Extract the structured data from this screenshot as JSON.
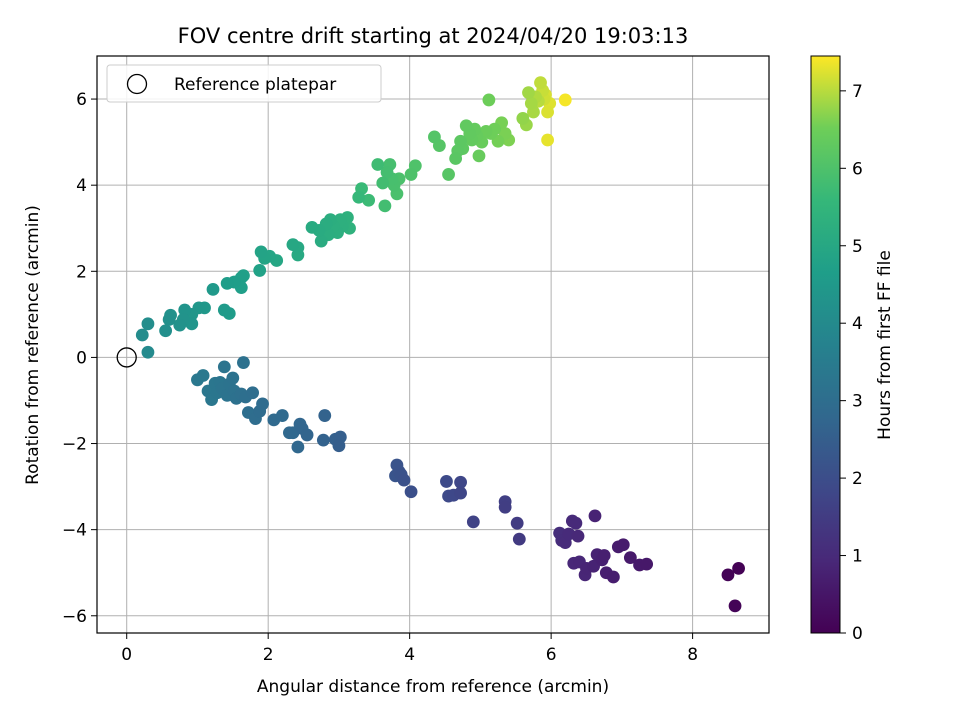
{
  "chart_data": {
    "type": "scatter",
    "title": "FOV centre drift starting at 2024/04/20 19:03:13",
    "xlabel": "Angular distance from reference (arcmin)",
    "ylabel": "Rotation from reference (arcmin)",
    "colorbar_label": "Hours from first FF file",
    "xlim": [
      -0.42,
      9.08
    ],
    "ylim": [
      -6.4,
      7.0
    ],
    "clim": [
      0,
      7.45
    ],
    "xticks": [
      0,
      2,
      4,
      6,
      8
    ],
    "yticks": [
      -6,
      -4,
      -2,
      0,
      2,
      4,
      6
    ],
    "cticks": [
      0,
      1,
      2,
      3,
      4,
      5,
      6,
      7
    ],
    "grid": true,
    "colormap": "viridis",
    "legend": {
      "placement": "top-left",
      "entries": [
        "Reference platepar"
      ]
    },
    "reference_point": {
      "x": 0,
      "y": 0
    },
    "points": [
      {
        "x": 8.65,
        "y": -4.9,
        "t": 0.02
      },
      {
        "x": 8.5,
        "y": -5.05,
        "t": 0.05
      },
      {
        "x": 8.6,
        "y": -5.77,
        "t": 0.08
      },
      {
        "x": 7.35,
        "y": -4.8,
        "t": 0.55
      },
      {
        "x": 7.25,
        "y": -4.82,
        "t": 0.58
      },
      {
        "x": 7.12,
        "y": -4.65,
        "t": 0.6
      },
      {
        "x": 7.02,
        "y": -4.35,
        "t": 0.62
      },
      {
        "x": 6.95,
        "y": -4.4,
        "t": 0.65
      },
      {
        "x": 6.88,
        "y": -5.1,
        "t": 0.68
      },
      {
        "x": 6.78,
        "y": -5.0,
        "t": 0.7
      },
      {
        "x": 6.75,
        "y": -4.6,
        "t": 0.72
      },
      {
        "x": 6.72,
        "y": -4.7,
        "t": 0.75
      },
      {
        "x": 6.65,
        "y": -4.58,
        "t": 0.78
      },
      {
        "x": 6.6,
        "y": -4.85,
        "t": 0.8
      },
      {
        "x": 6.62,
        "y": -3.68,
        "t": 0.82
      },
      {
        "x": 6.5,
        "y": -4.9,
        "t": 0.85
      },
      {
        "x": 6.48,
        "y": -5.05,
        "t": 0.88
      },
      {
        "x": 6.4,
        "y": -4.75,
        "t": 0.9
      },
      {
        "x": 6.32,
        "y": -4.78,
        "t": 0.93
      },
      {
        "x": 6.38,
        "y": -4.15,
        "t": 0.95
      },
      {
        "x": 6.35,
        "y": -3.85,
        "t": 0.98
      },
      {
        "x": 6.3,
        "y": -3.8,
        "t": 1.0
      },
      {
        "x": 6.25,
        "y": -4.1,
        "t": 1.02
      },
      {
        "x": 6.2,
        "y": -4.3,
        "t": 1.05
      },
      {
        "x": 6.15,
        "y": -4.25,
        "t": 1.08
      },
      {
        "x": 6.12,
        "y": -4.08,
        "t": 1.1
      },
      {
        "x": 5.55,
        "y": -4.22,
        "t": 1.45
      },
      {
        "x": 5.52,
        "y": -3.85,
        "t": 1.5
      },
      {
        "x": 5.35,
        "y": -3.48,
        "t": 1.55
      },
      {
        "x": 5.35,
        "y": -3.35,
        "t": 1.58
      },
      {
        "x": 4.9,
        "y": -3.82,
        "t": 1.7
      },
      {
        "x": 4.72,
        "y": -3.15,
        "t": 1.78
      },
      {
        "x": 4.72,
        "y": -2.9,
        "t": 1.8
      },
      {
        "x": 4.62,
        "y": -3.2,
        "t": 1.84
      },
      {
        "x": 4.55,
        "y": -3.22,
        "t": 1.88
      },
      {
        "x": 4.52,
        "y": -2.88,
        "t": 1.9
      },
      {
        "x": 4.02,
        "y": -3.12,
        "t": 2.05
      },
      {
        "x": 3.92,
        "y": -2.85,
        "t": 2.1
      },
      {
        "x": 3.88,
        "y": -2.72,
        "t": 2.12
      },
      {
        "x": 3.85,
        "y": -2.65,
        "t": 2.15
      },
      {
        "x": 3.82,
        "y": -2.5,
        "t": 2.18
      },
      {
        "x": 3.8,
        "y": -2.75,
        "t": 2.2
      },
      {
        "x": 3.0,
        "y": -2.05,
        "t": 2.5
      },
      {
        "x": 3.02,
        "y": -1.85,
        "t": 2.53
      },
      {
        "x": 2.95,
        "y": -1.9,
        "t": 2.55
      },
      {
        "x": 2.78,
        "y": -1.92,
        "t": 2.62
      },
      {
        "x": 2.8,
        "y": -1.35,
        "t": 2.65
      },
      {
        "x": 2.55,
        "y": -1.8,
        "t": 2.7
      },
      {
        "x": 2.48,
        "y": -1.65,
        "t": 2.73
      },
      {
        "x": 2.45,
        "y": -1.55,
        "t": 2.75
      },
      {
        "x": 2.42,
        "y": -2.08,
        "t": 2.78
      },
      {
        "x": 2.35,
        "y": -1.75,
        "t": 2.8
      },
      {
        "x": 2.3,
        "y": -1.75,
        "t": 2.82
      },
      {
        "x": 2.2,
        "y": -1.35,
        "t": 2.85
      },
      {
        "x": 2.08,
        "y": -1.45,
        "t": 2.88
      },
      {
        "x": 1.92,
        "y": -1.08,
        "t": 2.92
      },
      {
        "x": 1.88,
        "y": -1.25,
        "t": 2.95
      },
      {
        "x": 1.82,
        "y": -1.42,
        "t": 2.98
      },
      {
        "x": 1.78,
        "y": -0.82,
        "t": 3.0
      },
      {
        "x": 1.72,
        "y": -1.28,
        "t": 3.02
      },
      {
        "x": 1.68,
        "y": -0.92,
        "t": 3.05
      },
      {
        "x": 1.62,
        "y": -0.85,
        "t": 3.08
      },
      {
        "x": 1.65,
        "y": -0.12,
        "t": 3.1
      },
      {
        "x": 1.55,
        "y": -0.95,
        "t": 3.12
      },
      {
        "x": 1.52,
        "y": -0.78,
        "t": 3.14
      },
      {
        "x": 1.5,
        "y": -0.48,
        "t": 3.16
      },
      {
        "x": 1.45,
        "y": -0.62,
        "t": 3.18
      },
      {
        "x": 1.42,
        "y": -0.88,
        "t": 3.2
      },
      {
        "x": 1.38,
        "y": -0.22,
        "t": 3.22
      },
      {
        "x": 1.35,
        "y": -0.72,
        "t": 3.24
      },
      {
        "x": 1.32,
        "y": -0.58,
        "t": 3.26
      },
      {
        "x": 1.28,
        "y": -0.82,
        "t": 3.28
      },
      {
        "x": 1.25,
        "y": -0.6,
        "t": 3.3
      },
      {
        "x": 1.2,
        "y": -0.98,
        "t": 3.32
      },
      {
        "x": 1.15,
        "y": -0.78,
        "t": 3.34
      },
      {
        "x": 1.08,
        "y": -0.42,
        "t": 3.36
      },
      {
        "x": 1.0,
        "y": -0.52,
        "t": 3.38
      },
      {
        "x": 0.3,
        "y": 0.12,
        "t": 4.0
      },
      {
        "x": 0.22,
        "y": 0.52,
        "t": 4.05
      },
      {
        "x": 0.3,
        "y": 0.78,
        "t": 4.1
      },
      {
        "x": 0.55,
        "y": 0.62,
        "t": 4.15
      },
      {
        "x": 0.6,
        "y": 0.88,
        "t": 4.2
      },
      {
        "x": 0.62,
        "y": 0.98,
        "t": 4.22
      },
      {
        "x": 0.75,
        "y": 0.75,
        "t": 4.26
      },
      {
        "x": 0.8,
        "y": 0.88,
        "t": 4.3
      },
      {
        "x": 0.82,
        "y": 1.1,
        "t": 4.33
      },
      {
        "x": 0.92,
        "y": 0.78,
        "t": 4.36
      },
      {
        "x": 0.92,
        "y": 1.0,
        "t": 4.38
      },
      {
        "x": 1.02,
        "y": 1.15,
        "t": 4.42
      },
      {
        "x": 1.1,
        "y": 1.15,
        "t": 4.45
      },
      {
        "x": 1.22,
        "y": 1.58,
        "t": 4.5
      },
      {
        "x": 1.38,
        "y": 1.1,
        "t": 4.55
      },
      {
        "x": 1.45,
        "y": 1.02,
        "t": 4.6
      },
      {
        "x": 1.42,
        "y": 1.72,
        "t": 4.62
      },
      {
        "x": 1.52,
        "y": 1.75,
        "t": 4.65
      },
      {
        "x": 1.62,
        "y": 1.62,
        "t": 4.68
      },
      {
        "x": 1.62,
        "y": 1.85,
        "t": 4.7
      },
      {
        "x": 1.65,
        "y": 1.9,
        "t": 4.72
      },
      {
        "x": 1.88,
        "y": 2.02,
        "t": 4.8
      },
      {
        "x": 1.9,
        "y": 2.45,
        "t": 4.85
      },
      {
        "x": 1.95,
        "y": 2.3,
        "t": 4.88
      },
      {
        "x": 2.02,
        "y": 2.35,
        "t": 4.9
      },
      {
        "x": 2.12,
        "y": 2.25,
        "t": 4.95
      },
      {
        "x": 2.35,
        "y": 2.62,
        "t": 5.0
      },
      {
        "x": 2.42,
        "y": 2.55,
        "t": 5.03
      },
      {
        "x": 2.42,
        "y": 2.38,
        "t": 5.05
      },
      {
        "x": 2.62,
        "y": 3.02,
        "t": 5.1
      },
      {
        "x": 2.72,
        "y": 2.95,
        "t": 5.13
      },
      {
        "x": 2.75,
        "y": 2.7,
        "t": 5.15
      },
      {
        "x": 2.82,
        "y": 3.1,
        "t": 5.18
      },
      {
        "x": 2.85,
        "y": 2.85,
        "t": 5.2
      },
      {
        "x": 2.88,
        "y": 3.2,
        "t": 5.22
      },
      {
        "x": 2.92,
        "y": 3.05,
        "t": 5.24
      },
      {
        "x": 2.98,
        "y": 2.9,
        "t": 5.26
      },
      {
        "x": 3.02,
        "y": 3.2,
        "t": 5.28
      },
      {
        "x": 3.05,
        "y": 3.05,
        "t": 5.3
      },
      {
        "x": 3.12,
        "y": 3.25,
        "t": 5.33
      },
      {
        "x": 3.15,
        "y": 3.0,
        "t": 5.36
      },
      {
        "x": 3.28,
        "y": 3.72,
        "t": 5.6
      },
      {
        "x": 3.32,
        "y": 3.92,
        "t": 5.65
      },
      {
        "x": 3.42,
        "y": 3.65,
        "t": 5.7
      },
      {
        "x": 3.55,
        "y": 4.48,
        "t": 5.75
      },
      {
        "x": 3.62,
        "y": 4.05,
        "t": 5.8
      },
      {
        "x": 3.65,
        "y": 3.52,
        "t": 5.82
      },
      {
        "x": 3.68,
        "y": 4.3,
        "t": 5.85
      },
      {
        "x": 3.72,
        "y": 4.48,
        "t": 5.88
      },
      {
        "x": 3.75,
        "y": 4.15,
        "t": 5.9
      },
      {
        "x": 3.78,
        "y": 4.0,
        "t": 5.92
      },
      {
        "x": 3.82,
        "y": 3.8,
        "t": 5.94
      },
      {
        "x": 3.85,
        "y": 4.15,
        "t": 5.96
      },
      {
        "x": 4.02,
        "y": 4.25,
        "t": 6.0
      },
      {
        "x": 4.08,
        "y": 4.45,
        "t": 6.02
      },
      {
        "x": 4.35,
        "y": 5.12,
        "t": 6.1
      },
      {
        "x": 4.42,
        "y": 4.92,
        "t": 6.12
      },
      {
        "x": 4.55,
        "y": 4.25,
        "t": 6.15
      },
      {
        "x": 4.65,
        "y": 4.62,
        "t": 6.2
      },
      {
        "x": 4.68,
        "y": 4.8,
        "t": 6.22
      },
      {
        "x": 4.72,
        "y": 5.02,
        "t": 6.24
      },
      {
        "x": 4.75,
        "y": 4.85,
        "t": 6.26
      },
      {
        "x": 4.8,
        "y": 5.38,
        "t": 6.3
      },
      {
        "x": 4.85,
        "y": 5.2,
        "t": 6.32
      },
      {
        "x": 4.88,
        "y": 5.05,
        "t": 6.34
      },
      {
        "x": 4.92,
        "y": 5.3,
        "t": 6.36
      },
      {
        "x": 4.95,
        "y": 5.15,
        "t": 6.38
      },
      {
        "x": 4.98,
        "y": 4.68,
        "t": 6.4
      },
      {
        "x": 5.02,
        "y": 5.0,
        "t": 6.42
      },
      {
        "x": 5.08,
        "y": 5.25,
        "t": 6.45
      },
      {
        "x": 5.12,
        "y": 5.98,
        "t": 6.48
      },
      {
        "x": 5.15,
        "y": 5.2,
        "t": 6.5
      },
      {
        "x": 5.2,
        "y": 5.3,
        "t": 6.52
      },
      {
        "x": 5.25,
        "y": 5.02,
        "t": 6.55
      },
      {
        "x": 5.3,
        "y": 5.45,
        "t": 6.58
      },
      {
        "x": 5.35,
        "y": 5.2,
        "t": 6.6
      },
      {
        "x": 5.4,
        "y": 5.05,
        "t": 6.62
      },
      {
        "x": 5.6,
        "y": 5.55,
        "t": 6.75
      },
      {
        "x": 5.65,
        "y": 5.4,
        "t": 6.8
      },
      {
        "x": 5.68,
        "y": 6.15,
        "t": 6.85
      },
      {
        "x": 5.72,
        "y": 5.9,
        "t": 6.88
      },
      {
        "x": 5.75,
        "y": 5.7,
        "t": 6.9
      },
      {
        "x": 5.78,
        "y": 6.05,
        "t": 6.95
      },
      {
        "x": 5.82,
        "y": 5.95,
        "t": 7.0
      },
      {
        "x": 5.85,
        "y": 6.38,
        "t": 7.05
      },
      {
        "x": 5.88,
        "y": 6.2,
        "t": 7.1
      },
      {
        "x": 5.9,
        "y": 6.0,
        "t": 7.15
      },
      {
        "x": 5.92,
        "y": 6.1,
        "t": 7.2
      },
      {
        "x": 5.95,
        "y": 5.7,
        "t": 7.22
      },
      {
        "x": 5.98,
        "y": 5.9,
        "t": 7.25
      },
      {
        "x": 5.95,
        "y": 5.05,
        "t": 7.3
      },
      {
        "x": 6.2,
        "y": 5.98,
        "t": 7.4
      }
    ]
  }
}
